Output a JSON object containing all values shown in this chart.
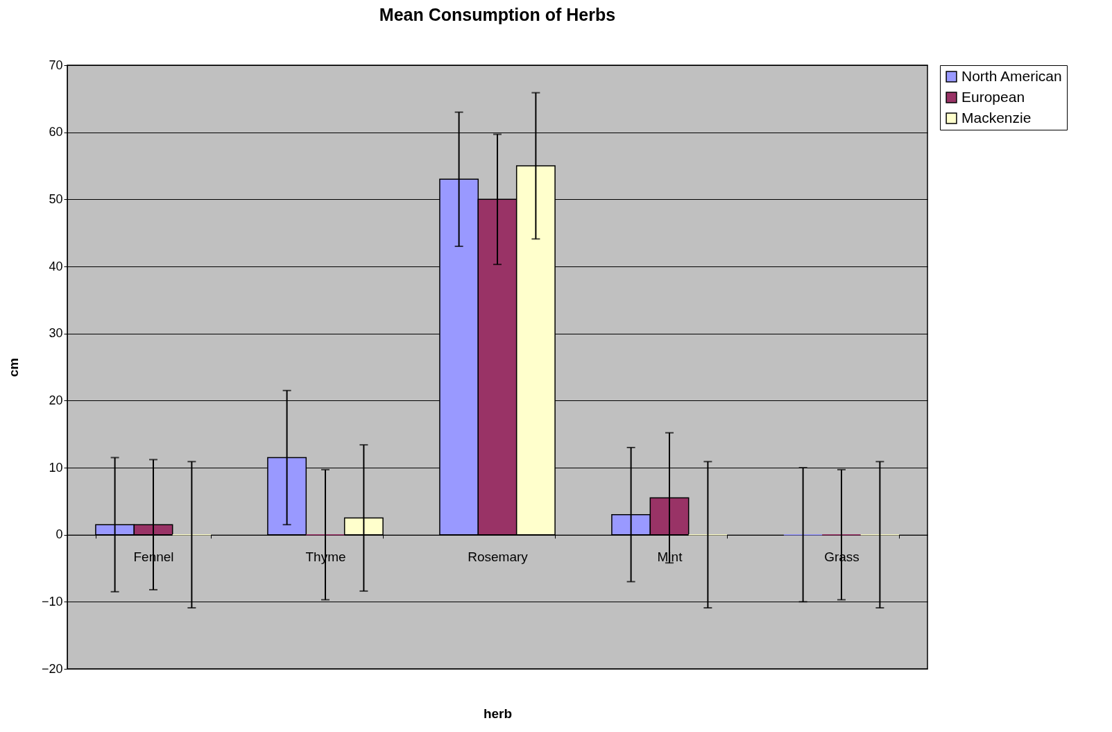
{
  "chart_data": {
    "type": "bar",
    "title": "Mean Consumption of Herbs",
    "xlabel": "herb",
    "ylabel": "cm",
    "categories": [
      "Fennel",
      "Thyme",
      "Rosemary",
      "Mint",
      "Grass"
    ],
    "series": [
      {
        "name": "North American",
        "color": "#9999ff",
        "values": [
          1.5,
          11.5,
          53,
          3,
          0
        ],
        "errors": [
          10,
          10,
          10,
          10,
          10
        ]
      },
      {
        "name": "European",
        "color": "#993366",
        "values": [
          1.5,
          0,
          50,
          5.5,
          0
        ],
        "errors": [
          9.7,
          9.7,
          9.7,
          9.7,
          9.7
        ]
      },
      {
        "name": "Mackenzie",
        "color": "#ffffcc",
        "values": [
          0,
          2.5,
          55,
          0,
          0
        ],
        "errors": [
          10.9,
          10.9,
          10.9,
          10.9,
          10.9
        ]
      }
    ],
    "ylim": [
      -20,
      70
    ],
    "yticks": [
      -20,
      -10,
      0,
      10,
      20,
      30,
      40,
      50,
      60,
      70
    ],
    "grid": "y",
    "legend": "right"
  }
}
